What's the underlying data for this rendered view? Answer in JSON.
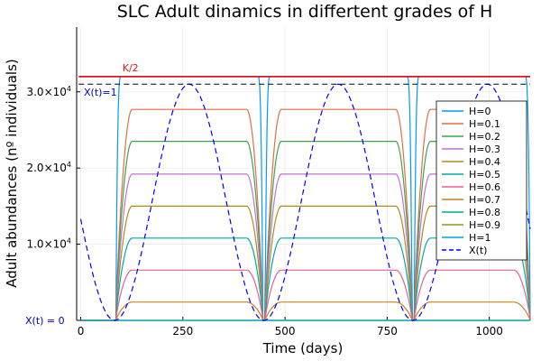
{
  "chart_data": {
    "type": "line",
    "title": "SLC Adult dinamics in differtent grades of H",
    "xlabel": "Time (days)",
    "ylabel": "Adult abundances (nº individuals)",
    "xlim": [
      -10,
      1100
    ],
    "ylim": [
      0,
      38500
    ],
    "x_ticks": [
      0,
      250,
      500,
      750,
      1000
    ],
    "x_tick_labels": [
      "0",
      "250",
      "500",
      "750",
      "1000"
    ],
    "y_ticks": [
      {
        "value": 10000,
        "mantissa": "1.0×10",
        "exp": "4"
      },
      {
        "value": 20000,
        "mantissa": "2.0×10",
        "exp": "4"
      },
      {
        "value": 30000,
        "mantissa": "3.0×10",
        "exp": "4"
      }
    ],
    "grid": true,
    "legend_position": "right",
    "period_days": 365,
    "crossings": [
      {
        "up": 86,
        "down": 446
      },
      {
        "up": 451,
        "down": 811
      },
      {
        "up": 816,
        "down": 1100
      }
    ],
    "series": [
      {
        "name": "H=0",
        "color": "#009AFA",
        "values_peak": 32000,
        "style": "solid"
      },
      {
        "name": "H=0.1",
        "color": "#E26F46",
        "values_peak": 27700,
        "style": "solid"
      },
      {
        "name": "H=0.2",
        "color": "#3DA44D",
        "values_peak": 23500,
        "style": "solid"
      },
      {
        "name": "H=0.3",
        "color": "#C271D2",
        "values_peak": 19200,
        "style": "solid"
      },
      {
        "name": "H=0.4",
        "color": "#AC8D18",
        "values_peak": 15000,
        "style": "solid"
      },
      {
        "name": "H=0.5",
        "color": "#00A9AD",
        "values_peak": 10800,
        "style": "solid"
      },
      {
        "name": "H=0.6",
        "color": "#ED5D92",
        "values_peak": 6600,
        "style": "solid"
      },
      {
        "name": "H=0.7",
        "color": "#C68225",
        "values_peak": 2400,
        "style": "solid"
      },
      {
        "name": "H=0.8",
        "color": "#00A98D",
        "values_peak": 0,
        "style": "solid"
      },
      {
        "name": "H=0.9",
        "color": "#8E971E",
        "values_peak": 0,
        "style": "solid"
      },
      {
        "name": "H=1",
        "color": "#00A8CB",
        "values_peak": 0,
        "style": "solid"
      },
      {
        "name": "X(t)",
        "color": "#0000FF",
        "style": "dashed",
        "formula": "15500 - 15500*cos(2*pi*(t-83)/365)"
      }
    ],
    "reference_lines": [
      {
        "label": "K/2",
        "value": 32000,
        "color": "#E0151F",
        "style": "solid"
      },
      {
        "label": "",
        "value": 31000,
        "color": "#000000",
        "style": "dashed"
      }
    ],
    "annotations": [
      {
        "text": "X(t)=1",
        "color": "#0000CC"
      },
      {
        "text": "X(t) = 0",
        "color": "#0000CC"
      }
    ]
  }
}
